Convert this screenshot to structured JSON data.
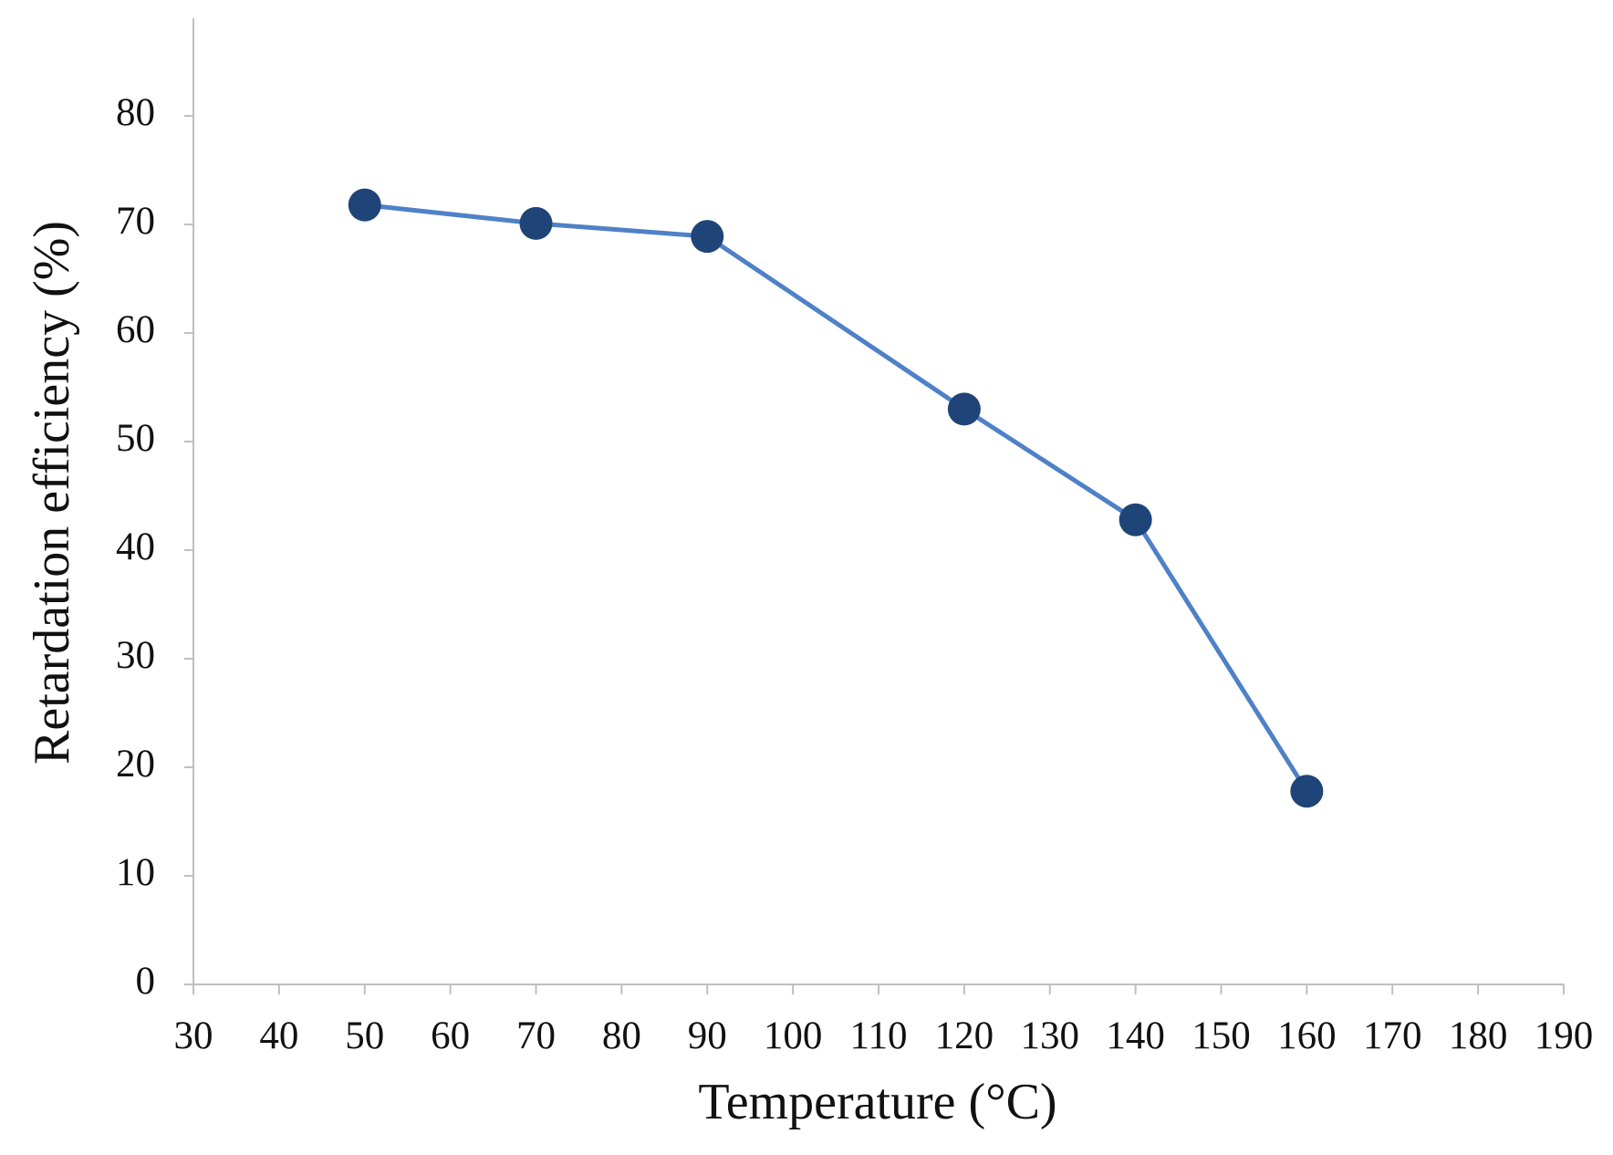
{
  "chart_data": {
    "type": "line",
    "x_label": "Temperature (°C)",
    "y_label": "Retardation efficiency (%)",
    "x": [
      50,
      70,
      90,
      120,
      140,
      160
    ],
    "series": [
      {
        "line_color": "#4f81c7",
        "color": "#1f4478",
        "values": [
          71.8,
          70.1,
          68.9,
          53,
          42.8,
          17.8
        ]
      }
    ],
    "xlim": [
      30,
      190
    ],
    "xticks": [
      30,
      40,
      50,
      60,
      70,
      80,
      90,
      100,
      110,
      120,
      130,
      140,
      150,
      160,
      170,
      180,
      190
    ],
    "ylim": [
      0,
      89
    ],
    "yticks": [
      0,
      10,
      20,
      30,
      40,
      50,
      60,
      70,
      80
    ],
    "grid": false
  }
}
